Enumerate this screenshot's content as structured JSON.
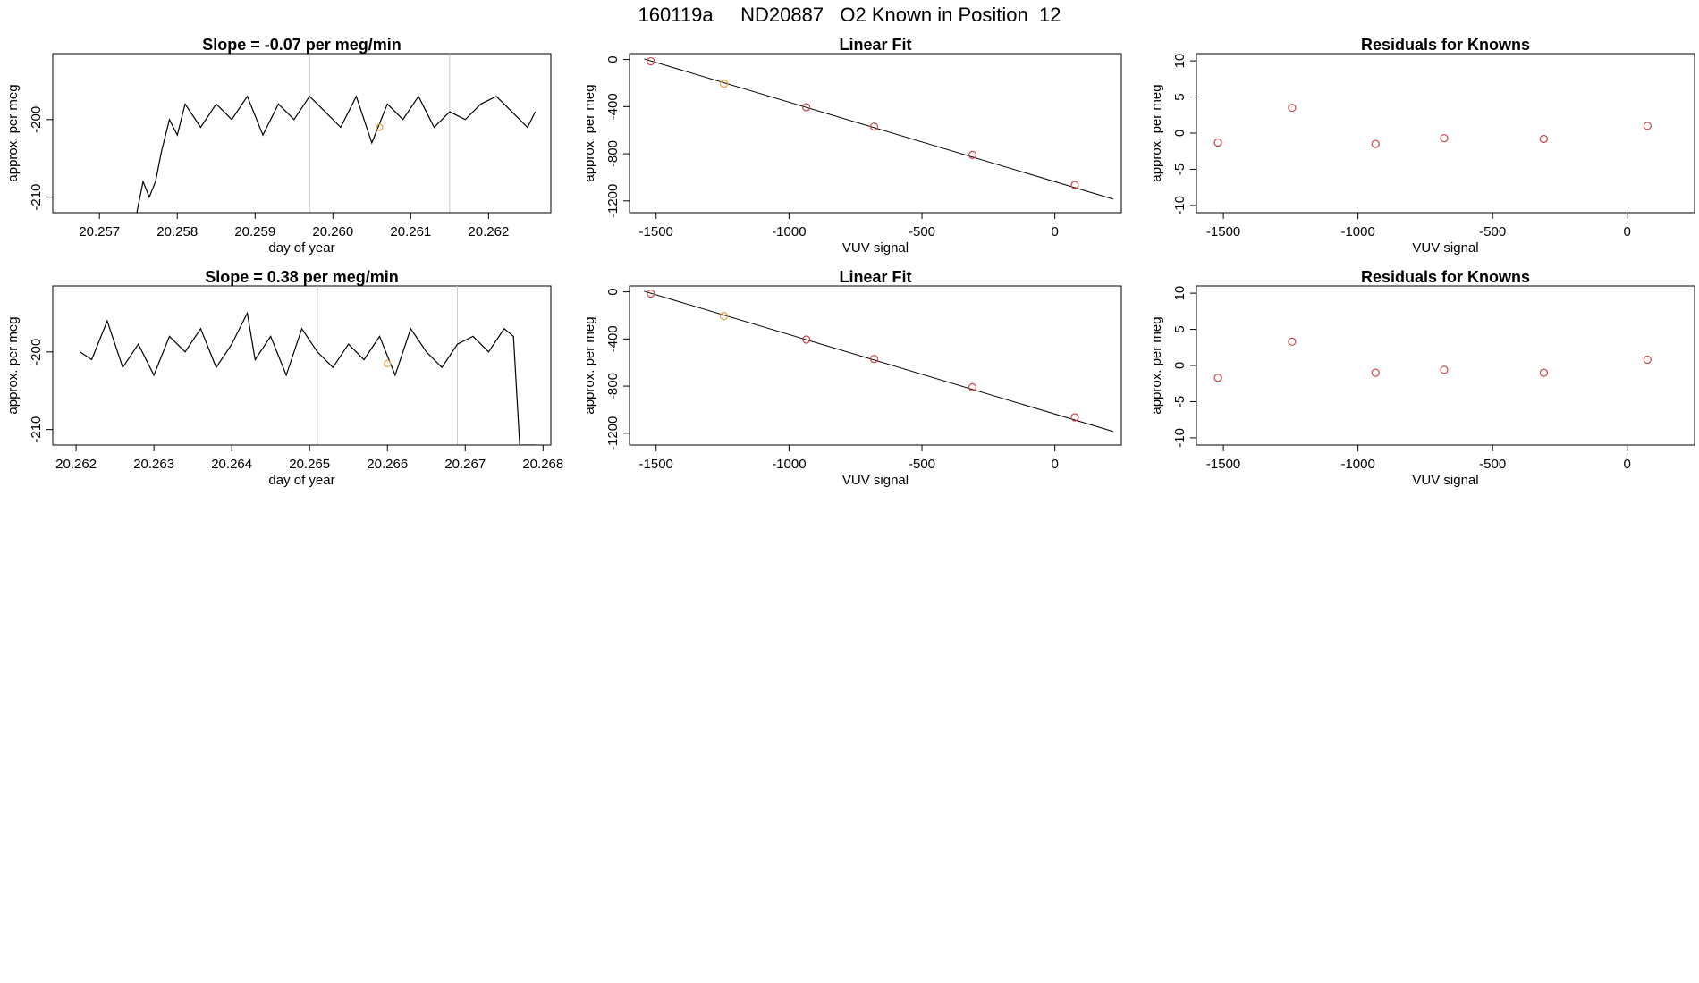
{
  "title": "160119a     ND20887   O2 Known in Position  12",
  "colors": {
    "line": "#000000",
    "point": "#c8474b",
    "highlight": "#e8a040",
    "vline": "#c8c8c8",
    "frame": "#000000"
  },
  "chart_data": [
    {
      "type": "line",
      "title": "Slope =  -0.07  per meg/min",
      "xlabel": "day of year",
      "ylabel": "approx. per meg",
      "xlim": [
        20.2564,
        20.2628
      ],
      "ylim": [
        -212,
        -191.5
      ],
      "xticks": [
        20.257,
        20.258,
        20.259,
        20.26,
        20.261,
        20.262
      ],
      "xtick_labels": [
        "20.257",
        "20.258",
        "20.259",
        "20.260",
        "20.261",
        "20.262"
      ],
      "yticks": [
        -210,
        -200
      ],
      "ytick_labels": [
        "-210",
        "-200"
      ],
      "vlines": [
        20.2597,
        20.2615
      ],
      "series": [
        {
          "x": [
            20.25748,
            20.25756,
            20.25764,
            20.25772,
            20.2578,
            20.2579,
            20.258,
            20.2581,
            20.2583,
            20.2585,
            20.2587,
            20.2589,
            20.2591,
            20.2593,
            20.2595,
            20.2597,
            20.2599,
            20.2601,
            20.2603,
            20.2605,
            20.2607,
            20.2609,
            20.2611,
            20.2613,
            20.2615,
            20.2617,
            20.2619,
            20.2621,
            20.2623,
            20.2625,
            20.2626
          ],
          "y": [
            -212,
            -208,
            -210,
            -208,
            -204,
            -200,
            -202,
            -198,
            -201,
            -198,
            -200,
            -197,
            -202,
            -198,
            -200,
            -197,
            -199,
            -201,
            -197,
            -203,
            -198,
            -200,
            -197,
            -201,
            -199,
            -200,
            -198,
            -197,
            -199,
            -201,
            -199
          ]
        }
      ],
      "highlight": {
        "x": 20.2606,
        "y": -201
      }
    },
    {
      "type": "scatter",
      "title": "Linear Fit",
      "xlabel": "VUV signal",
      "ylabel": "approx. per meg",
      "xlim": [
        -1600,
        250
      ],
      "ylim": [
        -1300,
        50
      ],
      "xticks": [
        -1500,
        -1000,
        -500,
        0
      ],
      "xtick_labels": [
        "-1500",
        "-1000",
        "-500",
        "0"
      ],
      "yticks": [
        0,
        -400,
        -800,
        -1200
      ],
      "ytick_labels": [
        "0",
        "-400",
        "-800",
        "-1200"
      ],
      "x": [
        -1520,
        -1245,
        -935,
        -680,
        -310,
        75
      ],
      "y": [
        -15,
        -205,
        -405,
        -570,
        -810,
        -1065
      ],
      "fit_line": {
        "x": [
          -1545,
          220
        ],
        "y": [
          5,
          -1185
        ]
      },
      "highlight_index": 1
    },
    {
      "type": "scatter",
      "title": "Residuals for Knowns",
      "xlabel": "VUV signal",
      "ylabel": "approx. per meg",
      "xlim": [
        -1600,
        250
      ],
      "ylim": [
        -11,
        11
      ],
      "xticks": [
        -1500,
        -1000,
        -500,
        0
      ],
      "xtick_labels": [
        "-1500",
        "-1000",
        "-500",
        "0"
      ],
      "yticks": [
        10,
        5,
        0,
        -5,
        -10
      ],
      "ytick_labels": [
        "10",
        "5",
        "0",
        "-5",
        "-10"
      ],
      "x": [
        -1520,
        -1245,
        -935,
        -680,
        -310,
        75
      ],
      "y": [
        -1.3,
        3.5,
        -1.5,
        -0.7,
        -0.8,
        1.0
      ]
    },
    {
      "type": "line",
      "title": "Slope =  0.38  per meg/min",
      "xlabel": "day of year",
      "ylabel": "approx. per meg",
      "xlim": [
        20.2617,
        20.2681
      ],
      "ylim": [
        -212,
        -191.5
      ],
      "xticks": [
        20.262,
        20.263,
        20.264,
        20.265,
        20.266,
        20.267,
        20.268
      ],
      "xtick_labels": [
        "20.262",
        "20.263",
        "20.264",
        "20.265",
        "20.266",
        "20.267",
        "20.268"
      ],
      "yticks": [
        -210,
        -200
      ],
      "ytick_labels": [
        "-210",
        "-200"
      ],
      "vlines": [
        20.2651,
        20.2669
      ],
      "series": [
        {
          "x": [
            20.26205,
            20.2622,
            20.2624,
            20.2626,
            20.2628,
            20.263,
            20.2632,
            20.2634,
            20.2636,
            20.2638,
            20.264,
            20.2642,
            20.2643,
            20.2645,
            20.2647,
            20.2649,
            20.2651,
            20.2653,
            20.2655,
            20.2657,
            20.2659,
            20.2661,
            20.2663,
            20.2665,
            20.2667,
            20.2669,
            20.2671,
            20.2673,
            20.2675,
            20.26762,
            20.2677,
            20.2679
          ],
          "y": [
            -200,
            -201,
            -196,
            -202,
            -199,
            -203,
            -198,
            -200,
            -197,
            -202,
            -199,
            -195,
            -201,
            -198,
            -203,
            -197,
            -200,
            -202,
            -199,
            -201,
            -198,
            -203,
            -197,
            -200,
            -202,
            -199,
            -198,
            -200,
            -197,
            -198,
            -212,
            -212
          ]
        }
      ],
      "highlight": {
        "x": 20.266,
        "y": -201.5
      }
    },
    {
      "type": "scatter",
      "title": "Linear Fit",
      "xlabel": "VUV signal",
      "ylabel": "approx. per meg",
      "xlim": [
        -1600,
        250
      ],
      "ylim": [
        -1300,
        50
      ],
      "xticks": [
        -1500,
        -1000,
        -500,
        0
      ],
      "xtick_labels": [
        "-1500",
        "-1000",
        "-500",
        "0"
      ],
      "yticks": [
        0,
        -400,
        -800,
        -1200
      ],
      "ytick_labels": [
        "0",
        "-400",
        "-800",
        "-1200"
      ],
      "x": [
        -1520,
        -1245,
        -935,
        -680,
        -310,
        75
      ],
      "y": [
        -15,
        -205,
        -405,
        -570,
        -810,
        -1065
      ],
      "fit_line": {
        "x": [
          -1545,
          220
        ],
        "y": [
          5,
          -1185
        ]
      },
      "highlight_index": 1
    },
    {
      "type": "scatter",
      "title": "Residuals for Knowns",
      "xlabel": "VUV signal",
      "ylabel": "approx. per meg",
      "xlim": [
        -1600,
        250
      ],
      "ylim": [
        -11,
        11
      ],
      "xticks": [
        -1500,
        -1000,
        -500,
        0
      ],
      "xtick_labels": [
        "-1500",
        "-1000",
        "-500",
        "0"
      ],
      "yticks": [
        10,
        5,
        0,
        -5,
        -10
      ],
      "ytick_labels": [
        "10",
        "5",
        "0",
        "-5",
        "-10"
      ],
      "x": [
        -1520,
        -1245,
        -935,
        -680,
        -310,
        75
      ],
      "y": [
        -1.7,
        3.3,
        -1.0,
        -0.6,
        -1.0,
        0.8
      ]
    }
  ]
}
